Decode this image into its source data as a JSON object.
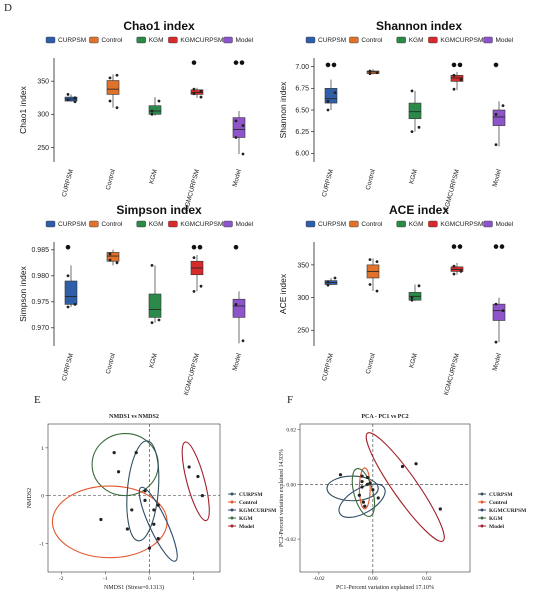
{
  "colors": {
    "CURPSM": "#2f5fa8",
    "Control": "#e0722c",
    "KGM": "#2b8a4a",
    "KGMCURPSM": "#d62b2b",
    "Model": "#8d55c9",
    "ell_CURPSM": "#2f4f5f",
    "ell_Control": "#e4572e",
    "ell_KGM": "#3a6b3a",
    "ell_KGMCURPSM": "#2e4a6b",
    "ell_Model": "#a3222a"
  },
  "panels": {
    "D": "D",
    "E": "E",
    "F": "F"
  },
  "legend_groups": [
    "CURPSM",
    "Control",
    "KGM",
    "KGMCURPSM",
    "Model"
  ],
  "chart_data": [
    {
      "type": "box",
      "title": "Chao1 index",
      "ylabel": "Chao1 index",
      "ylim": [
        228,
        385
      ],
      "yticks": [
        250,
        300,
        350
      ],
      "categories": [
        "CURPSM",
        "Control",
        "KGM",
        "KGMCURPSM",
        "Model"
      ],
      "boxes": [
        {
          "min": 319,
          "q1": 320,
          "median": 323,
          "q3": 326,
          "max": 330,
          "points": [
            322,
            325,
            330,
            319
          ]
        },
        {
          "min": 310,
          "q1": 330,
          "median": 338,
          "q3": 351,
          "max": 360,
          "points": [
            355,
            359,
            320,
            310
          ]
        },
        {
          "min": 298,
          "q1": 300,
          "median": 305,
          "q3": 313,
          "max": 326,
          "points": [
            305,
            320,
            300
          ]
        },
        {
          "min": 325,
          "q1": 330,
          "median": 333,
          "q3": 337,
          "max": 340,
          "points": [
            338,
            335,
            331,
            326
          ],
          "outliers": [
            378
          ]
        },
        {
          "min": 240,
          "q1": 265,
          "median": 277,
          "q3": 295,
          "max": 305,
          "points": [
            290,
            283,
            265,
            240
          ],
          "outliers": [
            378,
            378
          ]
        }
      ]
    },
    {
      "type": "box",
      "title": "Shannon index",
      "ylabel": "Shannon index",
      "ylim": [
        5.9,
        7.1
      ],
      "yticks": [
        6.0,
        6.25,
        6.5,
        6.75,
        7.0
      ],
      "ytick_labels": [
        "6.00",
        "6.25",
        "6.50",
        "6.75",
        "7.00"
      ],
      "categories": [
        "CURPSM",
        "Control",
        "KGM",
        "KGMCURPSM",
        "Model"
      ],
      "boxes": [
        {
          "min": 6.5,
          "q1": 6.58,
          "median": 6.63,
          "q3": 6.75,
          "max": 6.85,
          "points": [
            6.6,
            6.7,
            6.5
          ],
          "outliers": [
            7.02,
            7.02
          ]
        },
        {
          "min": 6.91,
          "q1": 6.92,
          "median": 6.94,
          "q3": 6.95,
          "max": 6.97,
          "points": [
            6.95,
            6.93,
            6.92
          ]
        },
        {
          "min": 6.25,
          "q1": 6.4,
          "median": 6.48,
          "q3": 6.58,
          "max": 6.72,
          "points": [
            6.72,
            6.3,
            6.25
          ]
        },
        {
          "min": 6.73,
          "q1": 6.83,
          "median": 6.87,
          "q3": 6.9,
          "max": 6.94,
          "points": [
            6.9,
            6.85,
            6.74
          ],
          "outliers": [
            7.02,
            7.02
          ]
        },
        {
          "min": 6.08,
          "q1": 6.32,
          "median": 6.42,
          "q3": 6.5,
          "max": 6.6,
          "points": [
            6.45,
            6.55,
            6.1
          ],
          "outliers": [
            7.02
          ]
        }
      ]
    },
    {
      "type": "box",
      "title": "Simpson index",
      "ylabel": "Simpson index",
      "ylim": [
        0.9665,
        0.9865
      ],
      "yticks": [
        0.97,
        0.975,
        0.98,
        0.985
      ],
      "ytick_labels": [
        "0.970",
        "0.975",
        "0.980",
        "0.985"
      ],
      "categories": [
        "CURPSM",
        "Control",
        "KGM",
        "KGMCURPSM",
        "Model"
      ],
      "boxes": [
        {
          "min": 0.974,
          "q1": 0.9745,
          "median": 0.976,
          "q3": 0.979,
          "max": 0.982,
          "points": [
            0.98,
            0.9745,
            0.974
          ],
          "outliers": [
            0.9855
          ]
        },
        {
          "min": 0.982,
          "q1": 0.9828,
          "median": 0.9838,
          "q3": 0.9845,
          "max": 0.985,
          "points": [
            0.9842,
            0.9825,
            0.983
          ]
        },
        {
          "min": 0.971,
          "q1": 0.972,
          "median": 0.9735,
          "q3": 0.9765,
          "max": 0.982,
          "points": [
            0.982,
            0.9715,
            0.971
          ]
        },
        {
          "min": 0.977,
          "q1": 0.9802,
          "median": 0.9815,
          "q3": 0.9828,
          "max": 0.984,
          "points": [
            0.9835,
            0.978,
            0.977
          ],
          "outliers": [
            0.9855,
            0.9855
          ]
        },
        {
          "min": 0.967,
          "q1": 0.972,
          "median": 0.9742,
          "q3": 0.9755,
          "max": 0.977,
          "points": [
            0.9745,
            0.9675
          ],
          "outliers": [
            0.9855
          ]
        }
      ]
    },
    {
      "type": "box",
      "title": "ACE index",
      "ylabel": "ACE index",
      "ylim": [
        226,
        385
      ],
      "yticks": [
        250,
        300,
        350
      ],
      "categories": [
        "CURPSM",
        "Control",
        "KGM",
        "KGMCURPSM",
        "Model"
      ],
      "boxes": [
        {
          "min": 319,
          "q1": 320,
          "median": 323,
          "q3": 326,
          "max": 330,
          "points": [
            324,
            330,
            319
          ]
        },
        {
          "min": 310,
          "q1": 330,
          "median": 340,
          "q3": 350,
          "max": 360,
          "points": [
            358,
            355,
            320,
            310
          ]
        },
        {
          "min": 295,
          "q1": 296,
          "median": 302,
          "q3": 308,
          "max": 320,
          "points": [
            300,
            318,
            296
          ]
        },
        {
          "min": 335,
          "q1": 340,
          "median": 343,
          "q3": 347,
          "max": 353,
          "points": [
            348,
            340,
            336
          ],
          "outliers": [
            378,
            378
          ]
        },
        {
          "min": 232,
          "q1": 265,
          "median": 280,
          "q3": 290,
          "max": 300,
          "points": [
            290,
            280,
            232
          ],
          "outliers": [
            378,
            378
          ]
        }
      ]
    },
    {
      "type": "scatter",
      "title": "NMDS1 vs NMDS2",
      "xlabel": "NMDS1 (Stress=0.1313)",
      "ylabel": "NMDS2",
      "xlim": [
        -2.3,
        1.6
      ],
      "ylim": [
        -1.6,
        1.5
      ],
      "xticks": [
        -2,
        -1,
        0,
        1
      ],
      "xtick_labels": [
        "-2",
        "-1",
        "0",
        "1"
      ],
      "yticks": [
        -1,
        0,
        1
      ],
      "yticks_labels": [
        "-1",
        "0",
        "1"
      ],
      "legend": [
        "CURPSM",
        "Control",
        "KGMCURPSM",
        "KGM",
        "Model"
      ],
      "series": [
        {
          "name": "CURPSM",
          "points": [
            [
              -0.1,
              -0.1
            ],
            [
              0.1,
              -0.6
            ],
            [
              0.2,
              -0.9
            ]
          ]
        },
        {
          "name": "Control",
          "points": [
            [
              -0.5,
              -0.7
            ],
            [
              -0.4,
              -0.3
            ],
            [
              -1.1,
              -0.5
            ]
          ]
        },
        {
          "name": "KGMCURPSM",
          "points": [
            [
              -0.1,
              0.1
            ],
            [
              0.1,
              -0.3
            ],
            [
              0.2,
              -0.2
            ],
            [
              0.0,
              -1.1
            ]
          ]
        },
        {
          "name": "KGM",
          "points": [
            [
              -0.8,
              0.9
            ],
            [
              -0.3,
              0.9
            ],
            [
              -0.7,
              0.5
            ]
          ]
        },
        {
          "name": "Model",
          "points": [
            [
              0.9,
              0.6
            ],
            [
              1.1,
              0.4
            ],
            [
              1.2,
              0.0
            ]
          ]
        }
      ],
      "ellipses": [
        {
          "name": "KGM",
          "cx": -0.55,
          "cy": 0.65,
          "rx": 0.75,
          "ry": 0.65,
          "angle": 0
        },
        {
          "name": "Control",
          "cx": -0.9,
          "cy": -0.55,
          "rx": 1.3,
          "ry": 0.75,
          "angle": 0
        },
        {
          "name": "CURPSM",
          "cx": -0.15,
          "cy": 0.1,
          "rx": 0.35,
          "ry": 1.05,
          "angle": 5
        },
        {
          "name": "KGMCURPSM",
          "cx": 0.2,
          "cy": -0.6,
          "rx": 0.2,
          "ry": 0.85,
          "angle": -25
        },
        {
          "name": "Model",
          "cx": 1.05,
          "cy": 0.3,
          "rx": 0.2,
          "ry": 0.85,
          "angle": -15
        }
      ]
    },
    {
      "type": "scatter",
      "title": "PCA - PC1 vs PC2",
      "xlabel": "PC1-Percent variation explained 17.10%",
      "ylabel": "PC2-Percent variation explained 14.93%",
      "xlim": [
        -0.027,
        0.036
      ],
      "ylim": [
        -0.032,
        0.022
      ],
      "xticks": [
        -0.02,
        0.0,
        0.02
      ],
      "xtick_labels": [
        "-0.02",
        "0.00",
        "0.02"
      ],
      "yticks": [
        -0.02,
        0.0,
        0.02
      ],
      "ytick_labels": [
        "-0.02",
        "0.00",
        "0.02"
      ],
      "legend": [
        "CURPSM",
        "Control",
        "KGMCURPSM",
        "KGM",
        "Model"
      ],
      "series": [
        {
          "name": "CURPSM",
          "points": [
            [
              -0.001,
              0.0005
            ],
            [
              0.002,
              -0.005
            ],
            [
              -0.003,
              -0.008
            ]
          ]
        },
        {
          "name": "Control",
          "points": [
            [
              -0.004,
              0.003
            ],
            [
              -0.002,
              0.0025
            ],
            [
              -0.004,
              -0.001
            ]
          ]
        },
        {
          "name": "KGMCURPSM",
          "points": [
            [
              -0.005,
              -0.004
            ],
            [
              -0.0035,
              -0.0065
            ],
            [
              0.0,
              -0.002
            ]
          ]
        },
        {
          "name": "KGM",
          "points": [
            [
              -0.012,
              0.0035
            ],
            [
              -0.004,
              0.001
            ],
            [
              -0.002,
              0.0
            ]
          ]
        },
        {
          "name": "Model",
          "points": [
            [
              0.011,
              0.0065
            ],
            [
              0.016,
              0.0075
            ],
            [
              0.025,
              -0.009
            ]
          ]
        }
      ],
      "ellipses": [
        {
          "name": "CURPSM",
          "cx": -0.0075,
          "cy": -0.0015,
          "rx": 0.0095,
          "ry": 0.0045,
          "angle": 0
        },
        {
          "name": "Control",
          "cx": -0.003,
          "cy": -0.0015,
          "rx": 0.002,
          "ry": 0.0075,
          "angle": 0
        },
        {
          "name": "KGMCURPSM",
          "cx": -0.004,
          "cy": -0.006,
          "rx": 0.0095,
          "ry": 0.0045,
          "angle": -30
        },
        {
          "name": "KGM",
          "cx": -0.0035,
          "cy": -0.003,
          "rx": 0.0035,
          "ry": 0.009,
          "angle": -15
        },
        {
          "name": "Model",
          "cx": 0.012,
          "cy": -0.001,
          "rx": 0.0045,
          "ry": 0.024,
          "angle": -35
        }
      ]
    }
  ]
}
